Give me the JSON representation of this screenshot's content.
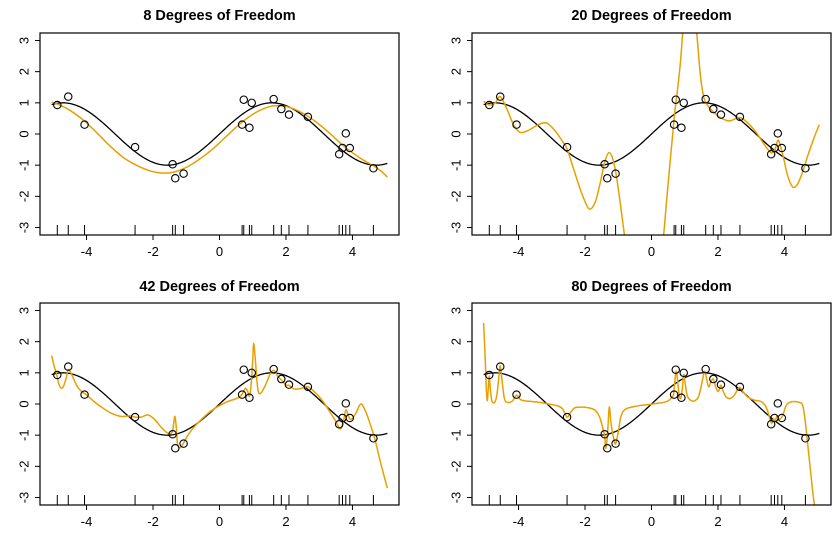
{
  "figure": {
    "background": "#ffffff",
    "point_style": "open-circle",
    "point_color": "#000000",
    "true_function": "sin(x)",
    "curve_colors": {
      "true_function": "#000000",
      "spline_fit": "#e8a000"
    }
  },
  "chart_data": [
    {
      "type": "scatter",
      "title": "8 Degrees of Freedom",
      "degrees_of_freedom": 8,
      "xlim": [
        -5.4,
        5.4
      ],
      "ylim": [
        -3.24,
        3.24
      ],
      "xticks": [
        -4,
        -2,
        0,
        2,
        4
      ],
      "yticks": [
        -3,
        -2,
        -1,
        0,
        1,
        2,
        3
      ],
      "grid": false,
      "rug": true,
      "points": {
        "x": [
          -4.88,
          -4.55,
          -4.06,
          -2.54,
          -1.41,
          -1.33,
          -1.08,
          0.68,
          0.73,
          0.9,
          0.97,
          1.63,
          1.86,
          2.09,
          2.66,
          3.6,
          3.7,
          3.8,
          3.92,
          4.63
        ],
        "y": [
          0.93,
          1.2,
          0.3,
          -0.42,
          -0.97,
          -1.42,
          -1.27,
          0.3,
          1.1,
          0.2,
          1.0,
          1.12,
          0.8,
          0.62,
          0.55,
          -0.65,
          -0.45,
          0.02,
          -0.45,
          -1.1
        ]
      },
      "series": [
        {
          "name": "true function sin(x)",
          "color": "#000000",
          "kind": "sin",
          "x_range": [
            -5.05,
            5.05
          ]
        },
        {
          "name": "spline fit df=8",
          "color": "#e8a000",
          "kind": "smooth",
          "x": [
            -5.05,
            -4.8,
            -4.5,
            -4.1,
            -3.7,
            -3.3,
            -2.9,
            -2.5,
            -2.1,
            -1.75,
            -1.45,
            -1.1,
            -0.8,
            -0.5,
            -0.2,
            0.1,
            0.4,
            0.7,
            1.0,
            1.3,
            1.6,
            1.9,
            2.2,
            2.5,
            2.8,
            3.1,
            3.4,
            3.7,
            4.0,
            4.3,
            4.6,
            4.85,
            5.05
          ],
          "y": [
            1.02,
            0.93,
            0.76,
            0.45,
            0.05,
            -0.38,
            -0.75,
            -1.0,
            -1.18,
            -1.25,
            -1.24,
            -1.12,
            -0.95,
            -0.73,
            -0.48,
            -0.18,
            0.12,
            0.4,
            0.63,
            0.8,
            0.9,
            0.9,
            0.82,
            0.67,
            0.47,
            0.22,
            -0.06,
            -0.35,
            -0.6,
            -0.82,
            -1.0,
            -1.18,
            -1.38
          ]
        }
      ]
    },
    {
      "type": "scatter",
      "title": "20 Degrees of Freedom",
      "degrees_of_freedom": 20,
      "xlim": [
        -5.4,
        5.4
      ],
      "ylim": [
        -3.24,
        3.24
      ],
      "xticks": [
        -4,
        -2,
        0,
        2,
        4
      ],
      "yticks": [
        -3,
        -2,
        -1,
        0,
        1,
        2,
        3
      ],
      "grid": false,
      "rug": true,
      "points": {
        "x": [
          -4.88,
          -4.55,
          -4.06,
          -2.54,
          -1.41,
          -1.33,
          -1.08,
          0.68,
          0.73,
          0.9,
          0.97,
          1.63,
          1.86,
          2.09,
          2.66,
          3.6,
          3.7,
          3.8,
          3.92,
          4.63
        ],
        "y": [
          0.93,
          1.2,
          0.3,
          -0.42,
          -0.97,
          -1.42,
          -1.27,
          0.3,
          1.1,
          0.2,
          1.0,
          1.12,
          0.8,
          0.62,
          0.55,
          -0.65,
          -0.45,
          0.02,
          -0.45,
          -1.1
        ]
      },
      "series": [
        {
          "name": "true function sin(x)",
          "color": "#000000",
          "kind": "sin",
          "x_range": [
            -5.05,
            5.05
          ]
        },
        {
          "name": "spline fit df=20",
          "color": "#e8a000",
          "kind": "smooth",
          "x": [
            -5.05,
            -4.88,
            -4.7,
            -4.55,
            -4.35,
            -4.15,
            -3.95,
            -3.7,
            -3.4,
            -3.15,
            -2.9,
            -2.7,
            -2.54,
            -2.35,
            -2.1,
            -1.88,
            -1.7,
            -1.55,
            -1.45,
            -1.38,
            -1.28,
            -1.18,
            -1.08,
            -0.98,
            -0.88,
            -0.78,
            -0.5,
            0.1,
            0.33,
            0.45,
            0.55,
            0.63,
            0.7,
            0.78,
            0.87,
            0.95,
            1.05,
            1.25,
            1.38,
            1.48,
            1.58,
            1.7,
            1.85,
            2.0,
            2.15,
            2.35,
            2.55,
            2.7,
            2.9,
            3.15,
            3.4,
            3.6,
            3.72,
            3.8,
            3.87,
            3.98,
            4.1,
            4.25,
            4.4,
            4.55,
            4.7,
            4.88,
            5.05
          ],
          "y": [
            1.05,
            0.93,
            1.0,
            1.2,
            0.8,
            0.3,
            0.05,
            0.12,
            0.3,
            0.35,
            0.1,
            -0.2,
            -0.48,
            -1.1,
            -1.9,
            -2.4,
            -2.2,
            -1.6,
            -1.1,
            -0.8,
            -0.6,
            -0.75,
            -1.2,
            -1.9,
            -2.7,
            -3.5,
            -5.5,
            -5.5,
            -3.6,
            -2.2,
            -1.0,
            -0.1,
            0.7,
            1.4,
            2.3,
            3.4,
            4.6,
            4.6,
            3.0,
            1.8,
            1.15,
            0.9,
            0.72,
            0.58,
            0.48,
            0.42,
            0.5,
            0.52,
            0.35,
            0.05,
            -0.35,
            -0.6,
            -0.48,
            -0.2,
            -0.35,
            -0.8,
            -1.35,
            -1.7,
            -1.6,
            -1.2,
            -0.7,
            -0.15,
            0.3
          ]
        }
      ]
    },
    {
      "type": "scatter",
      "title": "42 Degrees of Freedom",
      "degrees_of_freedom": 42,
      "xlim": [
        -5.4,
        5.4
      ],
      "ylim": [
        -3.24,
        3.24
      ],
      "xticks": [
        -4,
        -2,
        0,
        2,
        4
      ],
      "yticks": [
        -3,
        -2,
        -1,
        0,
        1,
        2,
        3
      ],
      "grid": false,
      "rug": true,
      "points": {
        "x": [
          -4.88,
          -4.55,
          -4.06,
          -2.54,
          -1.41,
          -1.33,
          -1.08,
          0.68,
          0.73,
          0.9,
          0.97,
          1.63,
          1.86,
          2.09,
          2.66,
          3.6,
          3.7,
          3.8,
          3.92,
          4.63
        ],
        "y": [
          0.93,
          1.2,
          0.3,
          -0.42,
          -0.97,
          -1.42,
          -1.27,
          0.3,
          1.1,
          0.2,
          1.0,
          1.12,
          0.8,
          0.62,
          0.55,
          -0.65,
          -0.45,
          0.02,
          -0.45,
          -1.1
        ]
      },
      "series": [
        {
          "name": "true function sin(x)",
          "color": "#000000",
          "kind": "sin",
          "x_range": [
            -5.05,
            5.05
          ]
        },
        {
          "name": "spline fit df=42",
          "color": "#e8a000",
          "kind": "smooth",
          "x": [
            -5.05,
            -4.97,
            -4.9,
            -4.82,
            -4.72,
            -4.62,
            -4.55,
            -4.47,
            -4.3,
            -4.15,
            -4.0,
            -3.8,
            -3.55,
            -3.25,
            -2.95,
            -2.7,
            -2.54,
            -2.35,
            -2.15,
            -1.95,
            -1.75,
            -1.58,
            -1.47,
            -1.41,
            -1.37,
            -1.34,
            -1.3,
            -1.26,
            -1.18,
            -1.08,
            -0.95,
            -0.75,
            -0.5,
            -0.25,
            0.0,
            0.25,
            0.45,
            0.6,
            0.7,
            0.78,
            0.85,
            0.9,
            0.95,
            1.0,
            1.03,
            1.08,
            1.13,
            1.18,
            1.28,
            1.4,
            1.52,
            1.63,
            1.75,
            1.88,
            2.0,
            2.09,
            2.25,
            2.45,
            2.66,
            2.85,
            3.1,
            3.35,
            3.52,
            3.63,
            3.72,
            3.8,
            3.87,
            3.95,
            4.1,
            4.25,
            4.4,
            4.55,
            4.68,
            4.85,
            5.05
          ],
          "y": [
            1.55,
            1.2,
            0.95,
            0.6,
            0.52,
            0.8,
            1.1,
            1.0,
            0.6,
            0.4,
            0.3,
            0.1,
            -0.1,
            -0.3,
            -0.4,
            -0.38,
            -0.42,
            -0.42,
            -0.35,
            -0.5,
            -0.75,
            -0.92,
            -0.95,
            -0.85,
            -0.55,
            -0.4,
            -0.75,
            -1.3,
            -1.4,
            -1.25,
            -1.0,
            -0.72,
            -0.45,
            -0.22,
            -0.05,
            0.08,
            0.15,
            0.22,
            0.35,
            0.5,
            0.4,
            0.25,
            0.6,
            1.4,
            1.95,
            1.4,
            0.7,
            0.35,
            0.4,
            0.65,
            0.95,
            1.08,
            0.9,
            0.75,
            0.6,
            0.6,
            0.48,
            0.5,
            0.55,
            0.4,
            0.1,
            -0.3,
            -0.6,
            -0.8,
            -0.6,
            -0.2,
            -0.35,
            -0.5,
            -0.3,
            0.0,
            -0.25,
            -0.7,
            -1.15,
            -1.9,
            -2.7
          ]
        }
      ]
    },
    {
      "type": "scatter",
      "title": "80 Degrees of Freedom",
      "degrees_of_freedom": 80,
      "xlim": [
        -5.4,
        5.4
      ],
      "ylim": [
        -3.24,
        3.24
      ],
      "xticks": [
        -4,
        -2,
        0,
        2,
        4
      ],
      "yticks": [
        -3,
        -2,
        -1,
        0,
        1,
        2,
        3
      ],
      "grid": false,
      "rug": true,
      "points": {
        "x": [
          -4.88,
          -4.55,
          -4.06,
          -2.54,
          -1.41,
          -1.33,
          -1.08,
          0.68,
          0.73,
          0.9,
          0.97,
          1.63,
          1.86,
          2.09,
          2.66,
          3.6,
          3.7,
          3.8,
          3.92,
          4.63
        ],
        "y": [
          0.93,
          1.2,
          0.3,
          -0.42,
          -0.97,
          -1.42,
          -1.27,
          0.3,
          1.1,
          0.2,
          1.0,
          1.12,
          0.8,
          0.62,
          0.55,
          -0.65,
          -0.45,
          0.02,
          -0.45,
          -1.1
        ]
      },
      "series": [
        {
          "name": "true function sin(x)",
          "color": "#000000",
          "kind": "sin",
          "x_range": [
            -5.05,
            5.05
          ]
        },
        {
          "name": "spline fit df=80",
          "color": "#e8a000",
          "kind": "smooth",
          "x": [
            -5.05,
            -5.0,
            -4.97,
            -4.94,
            -4.91,
            -4.88,
            -4.85,
            -4.8,
            -4.72,
            -4.65,
            -4.58,
            -4.55,
            -4.5,
            -4.42,
            -4.3,
            -4.18,
            -4.06,
            -3.95,
            -3.8,
            -3.6,
            -3.35,
            -3.1,
            -2.85,
            -2.68,
            -2.54,
            -2.42,
            -2.3,
            -2.1,
            -1.9,
            -1.7,
            -1.55,
            -1.45,
            -1.41,
            -1.37,
            -1.32,
            -1.27,
            -1.22,
            -1.14,
            -1.08,
            -1.0,
            -0.92,
            -0.8,
            -0.6,
            -0.35,
            -0.1,
            0.15,
            0.35,
            0.5,
            0.6,
            0.66,
            0.7,
            0.74,
            0.78,
            0.83,
            0.88,
            0.93,
            0.97,
            1.02,
            1.08,
            1.18,
            1.3,
            1.42,
            1.52,
            1.6,
            1.66,
            1.72,
            1.79,
            1.86,
            1.93,
            2.0,
            2.05,
            2.09,
            2.16,
            2.25,
            2.38,
            2.5,
            2.6,
            2.66,
            2.75,
            2.9,
            3.1,
            3.3,
            3.45,
            3.57,
            3.62,
            3.67,
            3.72,
            3.77,
            3.83,
            3.9,
            3.97,
            4.05,
            4.15,
            4.3,
            4.45,
            4.55,
            4.63,
            4.7,
            4.78,
            4.86,
            4.95
          ],
          "y": [
            2.6,
            1.4,
            0.5,
            0.1,
            0.5,
            0.9,
            0.5,
            0.1,
            0.05,
            0.3,
            1.0,
            1.22,
            0.8,
            0.15,
            0.05,
            0.1,
            0.28,
            0.15,
            0.1,
            0.08,
            0.05,
            0.0,
            -0.05,
            -0.15,
            -0.42,
            -0.25,
            -0.12,
            -0.1,
            -0.12,
            -0.2,
            -0.45,
            -0.85,
            -1.0,
            -1.42,
            -0.9,
            -0.1,
            -0.6,
            -1.1,
            -1.28,
            -0.9,
            -0.4,
            -0.18,
            -0.1,
            -0.05,
            -0.02,
            0.02,
            0.05,
            0.1,
            0.2,
            0.3,
            0.7,
            1.05,
            0.8,
            0.3,
            0.18,
            0.5,
            0.95,
            0.6,
            0.25,
            0.12,
            0.1,
            0.25,
            0.7,
            1.05,
            0.8,
            0.55,
            0.72,
            0.8,
            0.55,
            0.4,
            0.5,
            0.6,
            0.4,
            0.22,
            0.18,
            0.3,
            0.48,
            0.53,
            0.4,
            0.22,
            0.12,
            0.08,
            -0.1,
            -0.5,
            -0.62,
            -0.48,
            -0.55,
            -0.4,
            -0.48,
            -0.45,
            -0.3,
            -0.05,
            0.05,
            0.08,
            0.05,
            -0.05,
            -0.6,
            -1.3,
            -2.1,
            -2.9,
            -3.6
          ]
        }
      ]
    }
  ]
}
